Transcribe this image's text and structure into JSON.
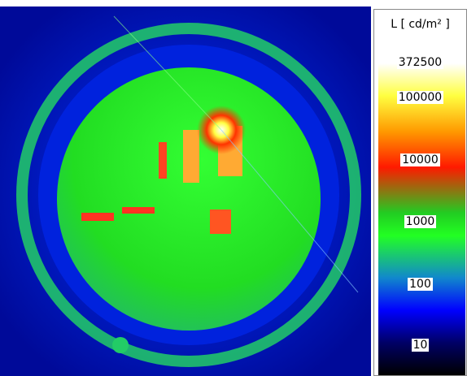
{
  "legend": {
    "title": "L [ cd/m² ]",
    "max_label": "372500",
    "tick_labels": [
      "100000",
      "10000",
      "1000",
      "100",
      "10"
    ]
  }
}
